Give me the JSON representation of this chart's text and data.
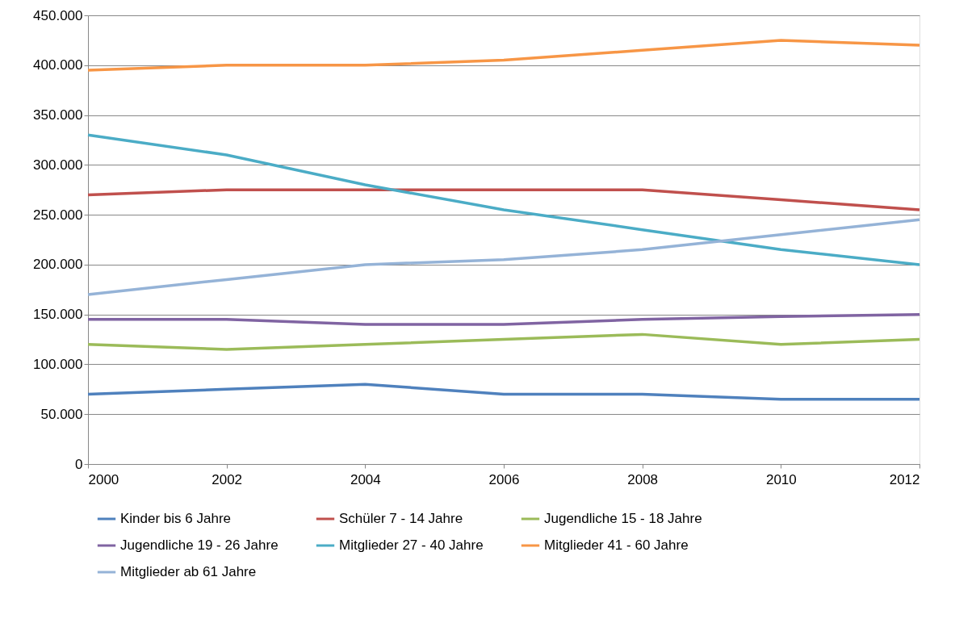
{
  "chart_data": {
    "type": "line",
    "x": [
      2000,
      2002,
      2004,
      2006,
      2008,
      2010,
      2012
    ],
    "xlim": [
      2000,
      2012
    ],
    "xticks": [
      2000,
      2002,
      2004,
      2006,
      2008,
      2010,
      2012
    ],
    "ylim": [
      0,
      450000
    ],
    "yticks": [
      0,
      {
        "value": 50000,
        "label": "50.000"
      },
      {
        "value": 100000,
        "label": "100.000"
      },
      {
        "value": 150000,
        "label": "150.000"
      },
      {
        "value": 200000,
        "label": "200.000"
      },
      {
        "value": 250000,
        "label": "250.000"
      },
      {
        "value": 300000,
        "label": "300.000"
      },
      {
        "value": 350000,
        "label": "350.000"
      },
      {
        "value": 400000,
        "label": "400.000"
      },
      {
        "value": 450000,
        "label": "450.000"
      }
    ],
    "grid": "y",
    "legend": "bottom",
    "marker": "none",
    "line_style": "solid",
    "series": [
      {
        "name": "Kinder bis 6 Jahre",
        "color": "#4f81bd",
        "values": [
          70000,
          75000,
          80000,
          70000,
          70000,
          65000,
          65000
        ]
      },
      {
        "name": "Schüler 7 - 14 Jahre",
        "color": "#c0504d",
        "values": [
          270000,
          275000,
          275000,
          275000,
          275000,
          265000,
          255000
        ]
      },
      {
        "name": "Jugendliche 15 - 18 Jahre",
        "color": "#9bbb59",
        "values": [
          120000,
          115000,
          120000,
          125000,
          130000,
          120000,
          125000
        ]
      },
      {
        "name": "Jugendliche 19 - 26 Jahre",
        "color": "#8064a2",
        "values": [
          145000,
          145000,
          140000,
          140000,
          145000,
          148000,
          150000
        ]
      },
      {
        "name": "Mitglieder 27 - 40 Jahre",
        "color": "#4bacc6",
        "values": [
          330000,
          310000,
          280000,
          255000,
          235000,
          215000,
          200000
        ]
      },
      {
        "name": "Mitglieder 41 - 60 Jahre",
        "color": "#f79646",
        "values": [
          395000,
          400000,
          400000,
          405000,
          415000,
          425000,
          420000
        ]
      },
      {
        "name": "Mitglieder ab 61 Jahre",
        "color": "#95b3d7",
        "values": [
          170000,
          185000,
          200000,
          205000,
          215000,
          230000,
          245000
        ]
      }
    ]
  }
}
